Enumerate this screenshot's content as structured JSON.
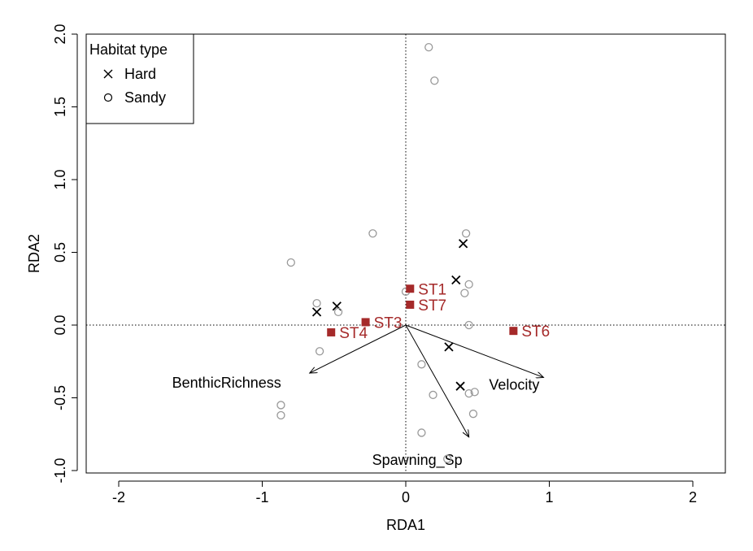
{
  "chart_data": {
    "type": "scatter",
    "title": "",
    "xlabel": "RDA1",
    "ylabel": "RDA2",
    "xlim": [
      -2.2,
      2.2
    ],
    "ylim": [
      -1.0,
      2.0
    ],
    "x_ticks": [
      -2,
      -1,
      0,
      1,
      2
    ],
    "y_ticks": [
      -1.0,
      -0.5,
      0.0,
      0.5,
      1.0,
      1.5,
      2.0
    ],
    "x_tick_labels": [
      "-2",
      "-1",
      "0",
      "1",
      "2"
    ],
    "y_tick_labels": [
      "-1.0",
      "-0.5",
      "0.0",
      "0.5",
      "1.0",
      "1.5",
      "2.0"
    ],
    "reference_lines": {
      "x": 0,
      "y": 0,
      "style": "dotted"
    },
    "grid": false,
    "legend": {
      "title": "Habitat type",
      "position": "top-left",
      "entries": [
        {
          "label": "Hard",
          "marker": "cross"
        },
        {
          "label": "Sandy",
          "marker": "circle"
        }
      ]
    },
    "series": [
      {
        "name": "Hard",
        "marker": "cross",
        "color": "#000000",
        "points": [
          {
            "x": 0.4,
            "y": 0.56
          },
          {
            "x": 0.35,
            "y": 0.31
          },
          {
            "x": -0.62,
            "y": 0.09
          },
          {
            "x": -0.48,
            "y": 0.13
          },
          {
            "x": 0.3,
            "y": -0.15
          },
          {
            "x": 0.38,
            "y": -0.42
          }
        ]
      },
      {
        "name": "Sandy",
        "marker": "circle",
        "color": "#999999",
        "points": [
          {
            "x": 0.16,
            "y": 1.91
          },
          {
            "x": 0.2,
            "y": 1.68
          },
          {
            "x": -0.23,
            "y": 0.63
          },
          {
            "x": 0.42,
            "y": 0.63
          },
          {
            "x": -0.8,
            "y": 0.43
          },
          {
            "x": 0.44,
            "y": 0.28
          },
          {
            "x": 0.41,
            "y": 0.22
          },
          {
            "x": 0.0,
            "y": 0.23
          },
          {
            "x": -0.62,
            "y": 0.15
          },
          {
            "x": -0.47,
            "y": 0.09
          },
          {
            "x": 0.44,
            "y": 0.0
          },
          {
            "x": -0.6,
            "y": -0.18
          },
          {
            "x": 0.11,
            "y": -0.27
          },
          {
            "x": 0.19,
            "y": -0.48
          },
          {
            "x": 0.44,
            "y": -0.47
          },
          {
            "x": 0.48,
            "y": -0.46
          },
          {
            "x": 0.47,
            "y": -0.61
          },
          {
            "x": -0.87,
            "y": -0.55
          },
          {
            "x": -0.87,
            "y": -0.62
          },
          {
            "x": 0.11,
            "y": -0.74
          },
          {
            "x": 0.29,
            "y": -0.92
          }
        ]
      }
    ],
    "sites": {
      "marker": "square",
      "color": "#a52a2a",
      "points": [
        {
          "label": "ST1",
          "x": 0.03,
          "y": 0.25
        },
        {
          "label": "ST7",
          "x": 0.03,
          "y": 0.14
        },
        {
          "label": "ST3",
          "x": -0.28,
          "y": 0.02
        },
        {
          "label": "ST4",
          "x": -0.52,
          "y": -0.05
        },
        {
          "label": "ST6",
          "x": 0.75,
          "y": -0.04
        }
      ]
    },
    "vectors": [
      {
        "label": "BenthicRichness",
        "x": -0.67,
        "y": -0.33
      },
      {
        "label": "Spawning_Sp",
        "x": 0.44,
        "y": -0.77
      },
      {
        "label": "Velocity",
        "x": 0.96,
        "y": -0.36
      }
    ]
  }
}
